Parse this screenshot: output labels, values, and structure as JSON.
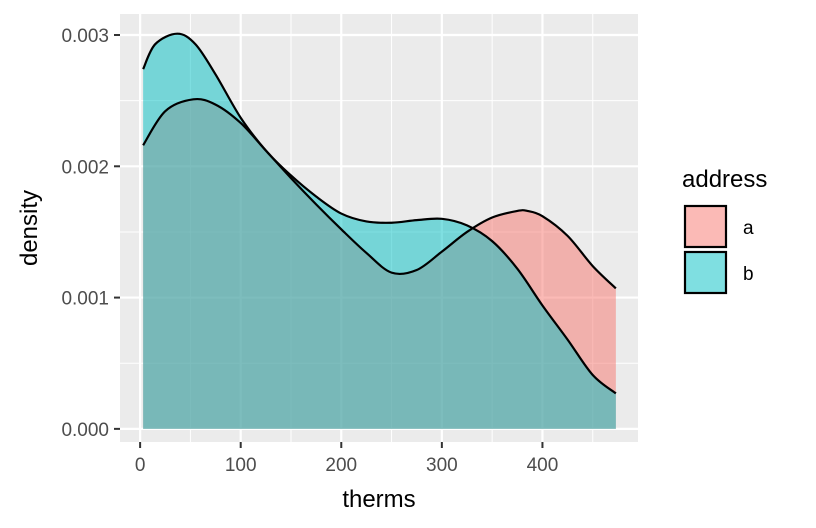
{
  "chart_data": {
    "type": "area",
    "title": "",
    "xlabel": "therms",
    "ylabel": "density",
    "xlim": [
      -20,
      495
    ],
    "ylim": [
      -0.0001,
      0.00316
    ],
    "x_ticks": [
      0,
      100,
      200,
      300,
      400
    ],
    "x_tick_labels": [
      "0",
      "100",
      "200",
      "300",
      "400"
    ],
    "y_ticks": [
      0,
      0.001,
      0.002,
      0.003
    ],
    "y_tick_labels": [
      "0.000",
      "0.001",
      "0.002",
      "0.003"
    ],
    "grid": true,
    "legend": {
      "title": "address",
      "position": "right"
    },
    "colors": {
      "panel": "#EBEBEB",
      "grid": "#FFFFFF"
    },
    "series": [
      {
        "name": "a",
        "color": "#F8766D",
        "x": [
          3,
          25,
          53,
          75,
          100,
          125,
          150,
          175,
          200,
          225,
          250,
          275,
          300,
          325,
          350,
          375,
          385,
          400,
          425,
          450,
          473
        ],
        "y": [
          0.00216,
          0.00242,
          0.00251,
          0.00247,
          0.00233,
          0.00212,
          0.00191,
          0.00171,
          0.00152,
          0.00134,
          0.00119,
          0.00121,
          0.00135,
          0.0015,
          0.00161,
          0.00166,
          0.00166,
          0.00162,
          0.00147,
          0.00124,
          0.00107
        ]
      },
      {
        "name": "b",
        "color": "#00BFC4",
        "x": [
          3,
          15,
          37,
          55,
          75,
          100,
          125,
          150,
          175,
          200,
          225,
          250,
          275,
          300,
          325,
          350,
          375,
          400,
          425,
          450,
          473
        ],
        "y": [
          0.00274,
          0.00293,
          0.00301,
          0.00293,
          0.0027,
          0.00237,
          0.00212,
          0.00193,
          0.00177,
          0.00164,
          0.00158,
          0.00157,
          0.00159,
          0.0016,
          0.00155,
          0.00143,
          0.00122,
          0.00094,
          0.00068,
          0.00041,
          0.00027
        ]
      }
    ]
  }
}
